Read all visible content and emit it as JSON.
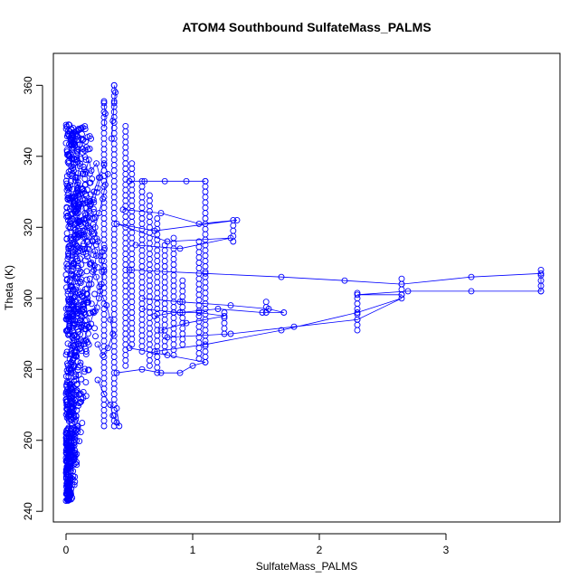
{
  "chart_data": {
    "type": "scatter",
    "title": "ATOM4 Southbound SulfateMass_PALMS",
    "xlabel": "SulfateMass_PALMS",
    "ylabel": "Theta (K)",
    "xlim": [
      -0.1,
      3.9
    ],
    "ylim": [
      237,
      369
    ],
    "x_ticks": [
      0,
      1,
      2,
      3
    ],
    "y_ticks": [
      240,
      260,
      280,
      300,
      320,
      340,
      360
    ],
    "grid": false,
    "legend": "none",
    "marker": "open-circle",
    "connect_points": true,
    "color": "#0000ff",
    "series": [
      {
        "values": [
          [
            0.0,
            243
          ],
          [
            0.01,
            246
          ],
          [
            0.02,
            250
          ],
          [
            0.0,
            255
          ],
          [
            0.02,
            258
          ],
          [
            0.03,
            262
          ],
          [
            0.02,
            266
          ],
          [
            0.01,
            270
          ],
          [
            0.03,
            274
          ],
          [
            0.02,
            278
          ],
          [
            0.04,
            282
          ],
          [
            0.05,
            286
          ],
          [
            0.03,
            290
          ],
          [
            0.04,
            294
          ],
          [
            0.06,
            298
          ],
          [
            0.05,
            302
          ],
          [
            0.07,
            306
          ],
          [
            0.06,
            310
          ],
          [
            0.08,
            314
          ],
          [
            0.07,
            318
          ],
          [
            0.09,
            322
          ],
          [
            0.08,
            326
          ],
          [
            0.1,
            330
          ],
          [
            0.09,
            334
          ],
          [
            0.11,
            338
          ],
          [
            0.1,
            342
          ],
          [
            0.12,
            345
          ],
          [
            0.08,
            347
          ],
          [
            0.05,
            344
          ],
          [
            0.03,
            340
          ],
          [
            0.06,
            336
          ],
          [
            0.09,
            332
          ],
          [
            0.13,
            328
          ],
          [
            0.15,
            324
          ],
          [
            0.18,
            320
          ],
          [
            0.21,
            316
          ],
          [
            0.24,
            312
          ],
          [
            0.22,
            308
          ],
          [
            0.2,
            304
          ],
          [
            0.17,
            300
          ],
          [
            0.14,
            296
          ],
          [
            0.12,
            292
          ],
          [
            0.1,
            288
          ],
          [
            0.08,
            284
          ],
          [
            0.06,
            281
          ],
          [
            0.04,
            279
          ]
        ]
      },
      {
        "values": [
          [
            0.14,
            288
          ],
          [
            0.18,
            292
          ],
          [
            0.22,
            296
          ],
          [
            0.26,
            300
          ],
          [
            0.28,
            304
          ],
          [
            0.3,
            308
          ],
          [
            0.27,
            312
          ],
          [
            0.25,
            316
          ],
          [
            0.23,
            320
          ],
          [
            0.26,
            324
          ],
          [
            0.29,
            328
          ],
          [
            0.31,
            332
          ],
          [
            0.33,
            335
          ],
          [
            0.3,
            338
          ],
          [
            0.26,
            334
          ],
          [
            0.22,
            330
          ],
          [
            0.19,
            326
          ],
          [
            0.16,
            322
          ],
          [
            0.14,
            318
          ],
          [
            0.17,
            314
          ],
          [
            0.2,
            310
          ],
          [
            0.24,
            306
          ],
          [
            0.27,
            302
          ],
          [
            0.32,
            298
          ],
          [
            0.35,
            294
          ],
          [
            0.37,
            290
          ],
          [
            0.33,
            286
          ],
          [
            0.29,
            284
          ],
          [
            0.25,
            287
          ]
        ]
      },
      {
        "values": [
          [
            0.36,
            345
          ],
          [
            0.37,
            350
          ],
          [
            0.38,
            355
          ],
          [
            0.39,
            358
          ],
          [
            0.38,
            360
          ]
        ]
      },
      {
        "values": [
          [
            0.3,
            348
          ],
          [
            0.31,
            352
          ],
          [
            0.3,
            355
          ]
        ]
      },
      {
        "values": [
          [
            0.5,
            333
          ],
          [
            0.62,
            333
          ],
          [
            0.78,
            333
          ],
          [
            0.95,
            333
          ],
          [
            1.1,
            333
          ]
        ]
      },
      {
        "values": [
          [
            0.45,
            325
          ],
          [
            0.75,
            324
          ],
          [
            1.05,
            321
          ],
          [
            1.35,
            322
          ],
          [
            0.7,
            319
          ],
          [
            0.4,
            321
          ],
          [
            0.8,
            316
          ],
          [
            1.3,
            317
          ],
          [
            0.9,
            314
          ],
          [
            0.55,
            315
          ]
        ]
      },
      {
        "values": [
          [
            0.5,
            308
          ],
          [
            1.1,
            307
          ],
          [
            1.7,
            306
          ],
          [
            2.2,
            305
          ],
          [
            2.65,
            304
          ],
          [
            3.2,
            306
          ],
          [
            3.75,
            307
          ],
          [
            3.75,
            302
          ],
          [
            3.2,
            302
          ],
          [
            2.7,
            302
          ],
          [
            2.3,
            301
          ],
          [
            2.65,
            301
          ]
        ]
      },
      {
        "values": [
          [
            0.6,
            300
          ],
          [
            0.9,
            299
          ],
          [
            1.3,
            298
          ],
          [
            1.6,
            297
          ],
          [
            1.72,
            296
          ],
          [
            1.55,
            296
          ],
          [
            1.2,
            297
          ],
          [
            0.9,
            296
          ],
          [
            0.6,
            297
          ]
        ]
      },
      {
        "values": [
          [
            0.8,
            289
          ],
          [
            1.3,
            290
          ],
          [
            1.8,
            292
          ],
          [
            2.3,
            294
          ],
          [
            2.65,
            300
          ],
          [
            2.3,
            296
          ],
          [
            1.7,
            291
          ],
          [
            1.1,
            287
          ],
          [
            0.7,
            285
          ]
        ]
      },
      {
        "values": [
          [
            0.4,
            279
          ],
          [
            0.6,
            280
          ],
          [
            0.75,
            279
          ],
          [
            0.9,
            279
          ],
          [
            1.0,
            281
          ],
          [
            1.1,
            282
          ],
          [
            0.8,
            284
          ],
          [
            0.5,
            286
          ]
        ]
      },
      {
        "values": [
          [
            0.25,
            277
          ],
          [
            0.3,
            273
          ],
          [
            0.35,
            270
          ],
          [
            0.37,
            267
          ],
          [
            0.4,
            265
          ],
          [
            0.42,
            264
          ],
          [
            0.4,
            269
          ]
        ]
      },
      {
        "values": [
          [
            0.7,
            295
          ],
          [
            0.85,
            296
          ],
          [
            1.05,
            296
          ],
          [
            1.25,
            295
          ],
          [
            0.95,
            293
          ],
          [
            0.75,
            291
          ]
        ]
      },
      {
        "values": [
          [
            0.15,
            335
          ],
          [
            0.18,
            339
          ],
          [
            0.2,
            336
          ],
          [
            0.24,
            338
          ],
          [
            0.27,
            334
          ],
          [
            0.25,
            331
          ],
          [
            0.22,
            327
          ]
        ]
      }
    ],
    "vertical_stacks": [
      {
        "x": 0.38,
        "from": 264,
        "to": 360
      },
      {
        "x": 0.3,
        "from": 264,
        "to": 356
      },
      {
        "x": 0.47,
        "from": 281,
        "to": 349
      },
      {
        "x": 0.52,
        "from": 287,
        "to": 339
      },
      {
        "x": 0.6,
        "from": 285,
        "to": 333
      },
      {
        "x": 0.66,
        "from": 281,
        "to": 330
      },
      {
        "x": 0.72,
        "from": 279,
        "to": 323
      },
      {
        "x": 0.78,
        "from": 285,
        "to": 316
      },
      {
        "x": 0.85,
        "from": 284,
        "to": 318
      },
      {
        "x": 0.92,
        "from": 287,
        "to": 306
      },
      {
        "x": 1.05,
        "from": 283,
        "to": 317
      },
      {
        "x": 1.1,
        "from": 282,
        "to": 333
      },
      {
        "x": 1.25,
        "from": 290,
        "to": 296
      },
      {
        "x": 1.32,
        "from": 316,
        "to": 322
      },
      {
        "x": 1.58,
        "from": 296,
        "to": 300
      },
      {
        "x": 2.3,
        "from": 291,
        "to": 302
      },
      {
        "x": 2.65,
        "from": 301,
        "to": 306
      },
      {
        "x": 3.75,
        "from": 302,
        "to": 308
      }
    ]
  }
}
